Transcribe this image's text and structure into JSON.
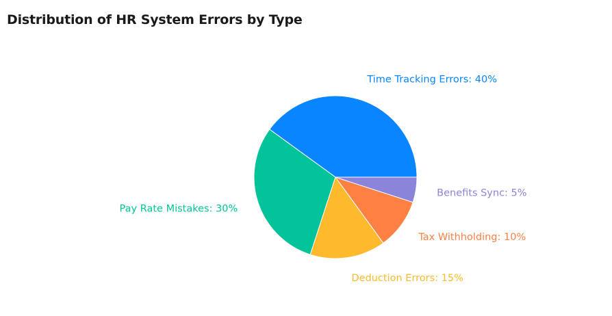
{
  "chart_data": {
    "type": "pie",
    "title": "Distribution of HR System Errors by Type",
    "slices": [
      {
        "name": "Time Tracking Errors",
        "value": 40,
        "color": "#0885ff",
        "label": "Time Tracking Errors: 40%"
      },
      {
        "name": "Pay Rate Mistakes",
        "value": 30,
        "color": "#03c39b",
        "label": "Pay Rate Mistakes: 30%"
      },
      {
        "name": "Deduction Errors",
        "value": 15,
        "color": "#feba2c",
        "label": "Deduction Errors: 15%"
      },
      {
        "name": "Tax Withholding",
        "value": 10,
        "color": "#fe8042",
        "label": "Tax Withholding: 10%"
      },
      {
        "name": "Benefits Sync",
        "value": 5,
        "color": "#8a85da",
        "label": "Benefits Sync: 5%"
      }
    ],
    "start_angle_deg": 0,
    "direction": "counterclockwise",
    "legend": "none"
  }
}
